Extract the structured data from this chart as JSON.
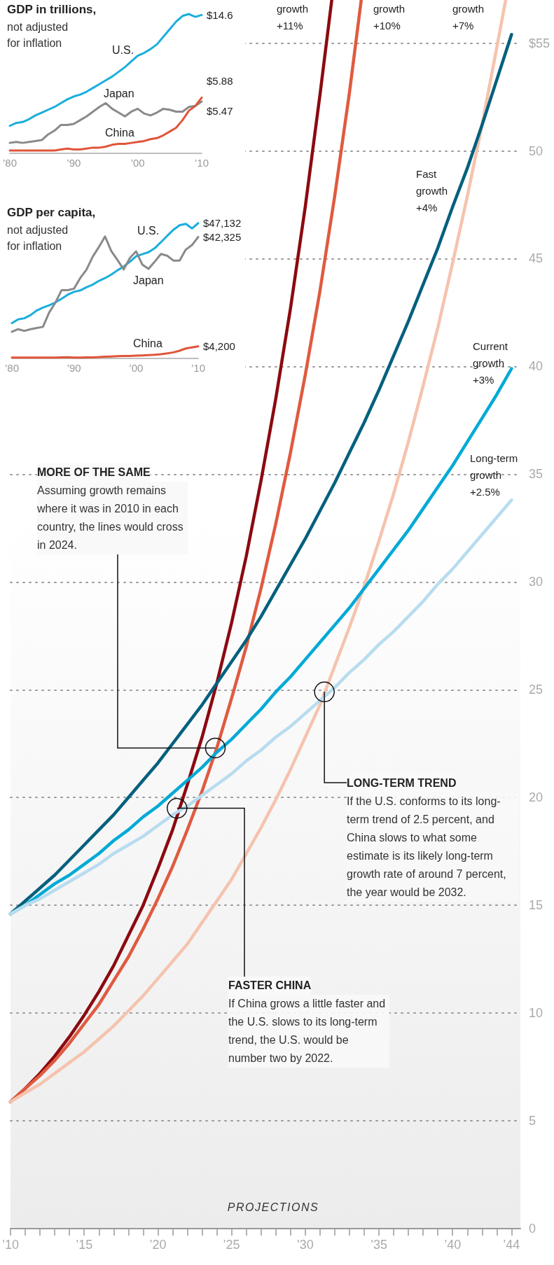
{
  "chart_data": [
    {
      "type": "line",
      "title": "GDP in trillions,",
      "subtitle": "not adjusted for inflation",
      "marker": "none",
      "tick_labels": "x",
      "x": [
        1980,
        1981,
        1982,
        1983,
        1984,
        1985,
        1986,
        1987,
        1988,
        1989,
        1990,
        1991,
        1992,
        1993,
        1994,
        1995,
        1996,
        1997,
        1998,
        1999,
        2000,
        2001,
        2002,
        2003,
        2004,
        2005,
        2006,
        2007,
        2008,
        2009,
        2010
      ],
      "xlim": [
        1980,
        2010
      ],
      "xticks": [
        {
          "value": 1980,
          "label": "’80"
        },
        {
          "value": 1990,
          "label": "’90"
        },
        {
          "value": 2000,
          "label": "’00"
        },
        {
          "value": 2010,
          "label": "’10"
        }
      ],
      "series": [
        {
          "name": "U.S.",
          "color": "#1aaedd",
          "values": [
            2.9,
            3.2,
            3.3,
            3.6,
            4.0,
            4.3,
            4.6,
            4.9,
            5.3,
            5.7,
            6.0,
            6.2,
            6.5,
            6.9,
            7.3,
            7.7,
            8.1,
            8.6,
            9.1,
            9.7,
            10.3,
            10.6,
            11.0,
            11.5,
            12.3,
            13.1,
            13.9,
            14.5,
            14.7,
            14.4,
            14.6
          ],
          "value_labels": [
            null,
            null,
            null,
            null,
            null,
            null,
            null,
            null,
            null,
            null,
            null,
            null,
            null,
            null,
            null,
            null,
            null,
            null,
            null,
            null,
            null,
            null,
            null,
            null,
            null,
            null,
            null,
            null,
            null,
            null,
            "$14.6"
          ]
        },
        {
          "name": "Japan",
          "color": "#8a8a8a",
          "values": [
            1.1,
            1.2,
            1.1,
            1.2,
            1.3,
            1.4,
            2.0,
            2.4,
            3.0,
            3.0,
            3.1,
            3.5,
            3.9,
            4.4,
            4.9,
            5.3,
            4.7,
            4.3,
            3.9,
            4.4,
            4.7,
            4.2,
            4.0,
            4.3,
            4.7,
            4.6,
            4.4,
            4.4,
            4.9,
            5.0,
            5.47
          ],
          "value_labels": [
            null,
            null,
            null,
            null,
            null,
            null,
            null,
            null,
            null,
            null,
            null,
            null,
            null,
            null,
            null,
            null,
            null,
            null,
            null,
            null,
            null,
            null,
            null,
            null,
            null,
            null,
            null,
            null,
            null,
            null,
            "$5.47"
          ]
        },
        {
          "name": "China",
          "color": "#e0553a",
          "values": [
            0.3,
            0.3,
            0.3,
            0.3,
            0.3,
            0.3,
            0.3,
            0.3,
            0.4,
            0.5,
            0.4,
            0.4,
            0.5,
            0.6,
            0.6,
            0.7,
            0.9,
            1.0,
            1.0,
            1.1,
            1.2,
            1.3,
            1.5,
            1.6,
            1.9,
            2.3,
            2.7,
            3.5,
            4.5,
            5.0,
            5.88
          ],
          "value_labels": [
            null,
            null,
            null,
            null,
            null,
            null,
            null,
            null,
            null,
            null,
            null,
            null,
            null,
            null,
            null,
            null,
            null,
            null,
            null,
            null,
            null,
            null,
            null,
            null,
            null,
            null,
            null,
            null,
            null,
            null,
            "$5.88"
          ]
        }
      ]
    },
    {
      "type": "line",
      "title": "GDP per capita,",
      "subtitle": "not adjusted for inflation",
      "marker": "none",
      "tick_labels": "x",
      "x": [
        1980,
        1981,
        1982,
        1983,
        1984,
        1985,
        1986,
        1987,
        1988,
        1989,
        1990,
        1991,
        1992,
        1993,
        1994,
        1995,
        1996,
        1997,
        1998,
        1999,
        2000,
        2001,
        2002,
        2003,
        2004,
        2005,
        2006,
        2007,
        2008,
        2009,
        2010
      ],
      "xlim": [
        1980,
        2010
      ],
      "xticks": [
        {
          "value": 1980,
          "label": "’80"
        },
        {
          "value": 1990,
          "label": "’90"
        },
        {
          "value": 2000,
          "label": "’00"
        },
        {
          "value": 2010,
          "label": "’10"
        }
      ],
      "series": [
        {
          "name": "U.S.",
          "color": "#1aaedd",
          "values": [
            12300,
            13600,
            14000,
            15100,
            16700,
            17700,
            18500,
            19500,
            20800,
            22200,
            23200,
            23700,
            24800,
            25700,
            27000,
            28000,
            29200,
            30700,
            32000,
            33700,
            35600,
            36300,
            37000,
            38400,
            40500,
            42700,
            44800,
            46400,
            46900,
            45300,
            47132
          ],
          "value_labels": [
            null,
            null,
            null,
            null,
            null,
            null,
            null,
            null,
            null,
            null,
            null,
            null,
            null,
            null,
            null,
            null,
            null,
            null,
            null,
            null,
            null,
            null,
            null,
            null,
            null,
            null,
            null,
            null,
            null,
            null,
            "$47,132"
          ]
        },
        {
          "name": "Japan",
          "color": "#8a8a8a",
          "values": [
            9300,
            10200,
            9600,
            10200,
            10600,
            11000,
            16000,
            19400,
            23800,
            23800,
            24300,
            28000,
            30900,
            35400,
            38800,
            42500,
            37400,
            34300,
            31000,
            35000,
            37300,
            32700,
            31200,
            33700,
            36400,
            35800,
            34100,
            34100,
            37900,
            39500,
            42325
          ],
          "value_labels": [
            null,
            null,
            null,
            null,
            null,
            null,
            null,
            null,
            null,
            null,
            null,
            null,
            null,
            null,
            null,
            null,
            null,
            null,
            null,
            null,
            null,
            null,
            null,
            null,
            null,
            null,
            null,
            null,
            null,
            null,
            "$42,325"
          ]
        },
        {
          "name": "China",
          "color": "#e0553a",
          "values": [
            310,
            290,
            280,
            300,
            300,
            290,
            280,
            300,
            370,
            410,
            320,
            330,
            370,
            380,
            470,
            610,
            700,
            780,
            830,
            870,
            950,
            1040,
            1140,
            1270,
            1490,
            1750,
            2100,
            2690,
            3470,
            3830,
            4200
          ],
          "value_labels": [
            null,
            null,
            null,
            null,
            null,
            null,
            null,
            null,
            null,
            null,
            null,
            null,
            null,
            null,
            null,
            null,
            null,
            null,
            null,
            null,
            null,
            null,
            null,
            null,
            null,
            null,
            null,
            null,
            null,
            null,
            "$4,200"
          ]
        }
      ]
    },
    {
      "type": "line",
      "marker": "none",
      "grid": "y",
      "x": [
        2010,
        2011,
        2012,
        2013,
        2014,
        2015,
        2016,
        2017,
        2018,
        2019,
        2020,
        2021,
        2022,
        2023,
        2024,
        2025,
        2026,
        2027,
        2028,
        2029,
        2030,
        2031,
        2032,
        2033,
        2034,
        2035,
        2036,
        2037,
        2038,
        2039,
        2040,
        2041,
        2042,
        2043,
        2044
      ],
      "xlim": [
        2010,
        2044.6
      ],
      "xticks": [
        {
          "value": 2010,
          "label": "’10"
        },
        {
          "value": 2011,
          "label": null
        },
        {
          "value": 2012,
          "label": null
        },
        {
          "value": 2013,
          "label": null
        },
        {
          "value": 2014,
          "label": null
        },
        {
          "value": 2015,
          "label": "’15"
        },
        {
          "value": 2016,
          "label": null
        },
        {
          "value": 2017,
          "label": null
        },
        {
          "value": 2018,
          "label": null
        },
        {
          "value": 2019,
          "label": null
        },
        {
          "value": 2020,
          "label": "’20"
        },
        {
          "value": 2021,
          "label": null
        },
        {
          "value": 2022,
          "label": null
        },
        {
          "value": 2023,
          "label": null
        },
        {
          "value": 2024,
          "label": null
        },
        {
          "value": 2025,
          "label": "’25"
        },
        {
          "value": 2026,
          "label": null
        },
        {
          "value": 2027,
          "label": null
        },
        {
          "value": 2028,
          "label": null
        },
        {
          "value": 2029,
          "label": null
        },
        {
          "value": 2030,
          "label": "’30"
        },
        {
          "value": 2031,
          "label": null
        },
        {
          "value": 2032,
          "label": null
        },
        {
          "value": 2033,
          "label": null
        },
        {
          "value": 2034,
          "label": null
        },
        {
          "value": 2035,
          "label": "’35"
        },
        {
          "value": 2036,
          "label": null
        },
        {
          "value": 2037,
          "label": null
        },
        {
          "value": 2038,
          "label": null
        },
        {
          "value": 2039,
          "label": null
        },
        {
          "value": 2040,
          "label": "’40"
        },
        {
          "value": 2041,
          "label": null
        },
        {
          "value": 2042,
          "label": null
        },
        {
          "value": 2043,
          "label": null
        },
        {
          "value": 2044,
          "label": "’44"
        }
      ],
      "ylim": [
        0,
        57
      ],
      "yticks": [
        0,
        5,
        10,
        15,
        20,
        25,
        30,
        35,
        40,
        45,
        50,
        {
          "value": 55,
          "label": "$55"
        }
      ],
      "series": [
        {
          "name": "growth +11%",
          "color": "#8b0a10",
          "x": [
            2010,
            2011,
            2012,
            2013,
            2014,
            2015,
            2016,
            2017,
            2018,
            2019,
            2020,
            2021,
            2022,
            2023,
            2024,
            2025,
            2026,
            2027,
            2028,
            2029,
            2030,
            2031,
            2031.8
          ],
          "values": [
            5.88,
            6.5,
            7.2,
            8.0,
            8.9,
            9.9,
            11.0,
            12.2,
            13.6,
            15.0,
            16.7,
            18.5,
            20.6,
            22.8,
            25.3,
            28.1,
            31.2,
            34.7,
            38.5,
            42.7,
            47.4,
            52.6,
            57
          ]
        },
        {
          "name": "growth +10%",
          "color": "#e05a40",
          "x": [
            2010,
            2011,
            2012,
            2013,
            2014,
            2015,
            2016,
            2017,
            2018,
            2019,
            2020,
            2021,
            2022,
            2023,
            2024,
            2025,
            2026,
            2027,
            2028,
            2029,
            2030,
            2031,
            2032,
            2033,
            2033.8
          ],
          "values": [
            5.88,
            6.5,
            7.1,
            7.8,
            8.6,
            9.5,
            10.4,
            11.5,
            12.6,
            13.9,
            15.3,
            16.8,
            18.5,
            20.3,
            22.3,
            24.6,
            27.0,
            29.7,
            32.7,
            36.0,
            39.6,
            43.5,
            47.9,
            52.7,
            57
          ]
        },
        {
          "name": "growth +7%",
          "color": "#f5c3ae",
          "x": [
            2010,
            2011,
            2012,
            2013,
            2014,
            2015,
            2016,
            2017,
            2018,
            2019,
            2020,
            2021,
            2022,
            2023,
            2024,
            2025,
            2026,
            2027,
            2028,
            2029,
            2030,
            2031,
            2032,
            2033,
            2034,
            2035,
            2036,
            2037,
            2038,
            2039,
            2040,
            2041,
            2042,
            2043,
            2043.6
          ],
          "values": [
            5.88,
            6.3,
            6.7,
            7.2,
            7.7,
            8.2,
            8.8,
            9.4,
            10.1,
            10.8,
            11.6,
            12.4,
            13.2,
            14.2,
            15.2,
            16.2,
            17.4,
            18.6,
            19.9,
            21.3,
            22.8,
            24.3,
            26.1,
            27.9,
            29.8,
            31.9,
            34.1,
            36.5,
            39.1,
            41.8,
            44.8,
            47.9,
            51.2,
            54.8,
            57
          ]
        },
        {
          "name": "Fast growth +4%",
          "color": "#05607e",
          "values": [
            14.6,
            15.2,
            15.8,
            16.4,
            17.1,
            17.8,
            18.5,
            19.2,
            20.0,
            20.8,
            21.6,
            22.5,
            23.4,
            24.3,
            25.3,
            26.3,
            27.3,
            28.4,
            29.6,
            30.8,
            32.0,
            33.3,
            34.6,
            36.0,
            37.4,
            38.9,
            40.5,
            42.1,
            43.8,
            45.5,
            47.4,
            49.2,
            51.2,
            53.3,
            55.4
          ]
        },
        {
          "name": "Current growth +3%",
          "color": "#00aad6",
          "values": [
            14.6,
            15.0,
            15.5,
            16.0,
            16.4,
            16.9,
            17.4,
            18.0,
            18.5,
            19.1,
            19.6,
            20.2,
            20.8,
            21.4,
            22.1,
            22.7,
            23.4,
            24.1,
            24.9,
            25.6,
            26.4,
            27.2,
            28.0,
            28.8,
            29.7,
            30.6,
            31.5,
            32.4,
            33.4,
            34.4,
            35.4,
            36.5,
            37.6,
            38.7,
            39.9
          ]
        },
        {
          "name": "Long-term growth +2.5%",
          "color": "#b8dcef",
          "values": [
            14.6,
            15.0,
            15.3,
            15.7,
            16.1,
            16.5,
            16.9,
            17.4,
            17.8,
            18.2,
            18.7,
            19.2,
            19.6,
            20.1,
            20.6,
            21.1,
            21.7,
            22.2,
            22.8,
            23.3,
            23.9,
            24.5,
            25.1,
            25.8,
            26.4,
            27.1,
            27.7,
            28.4,
            29.1,
            29.9,
            30.6,
            31.4,
            32.2,
            33.0,
            33.8
          ]
        }
      ],
      "annotations": [
        {
          "text": "MORE OF THE SAME\nAssuming growth remains where it was in 2010 in each country, the lines would cross in 2024.",
          "x": 2023.9,
          "y": 22.3
        },
        {
          "text": "LONG-TERM TREND\nIf the U.S. conforms to its long-term trend of 2.5 percent, and China slows to what some estimate is its likely long-term growth rate of around 7 percent, the year would be 2032.",
          "x": 2031.3,
          "y": 24.9
        },
        {
          "text": "FASTER CHINA\nIf China grows a little faster and the U.S. slows to its long-term trend, the U.S. would be number two by 2022.",
          "x": 2021.3,
          "y": 19.5
        },
        "PROJECTIONS"
      ]
    }
  ]
}
